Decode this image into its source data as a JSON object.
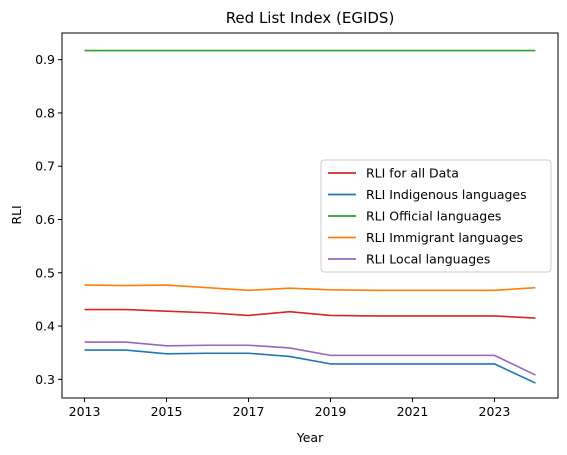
{
  "chart_data": {
    "type": "line",
    "title": "Red List Index (EGIDS)",
    "xlabel": "Year",
    "ylabel": "RLI",
    "x": [
      2013,
      2014,
      2015,
      2016,
      2017,
      2018,
      2019,
      2020,
      2021,
      2022,
      2023,
      2024
    ],
    "xlim": [
      2012.45,
      2024.55
    ],
    "ylim": [
      0.265,
      0.95
    ],
    "xticks": [
      "2013",
      "2015",
      "2017",
      "2019",
      "2021",
      "2023"
    ],
    "yticks": [
      "0.3",
      "0.4",
      "0.5",
      "0.6",
      "0.7",
      "0.8",
      "0.9"
    ],
    "grid": false,
    "legend_position": "center-right",
    "series": [
      {
        "name": "RLI for all Data",
        "color": "#d62728",
        "values": [
          0.431,
          0.431,
          0.428,
          0.425,
          0.42,
          0.427,
          0.42,
          0.419,
          0.419,
          0.419,
          0.419,
          0.415
        ]
      },
      {
        "name": "RLI Indigenous languages",
        "color": "#1f77b4",
        "values": [
          0.355,
          0.355,
          0.348,
          0.349,
          0.349,
          0.343,
          0.329,
          0.329,
          0.329,
          0.329,
          0.329,
          0.293
        ]
      },
      {
        "name": "RLI Official languages",
        "color": "#2ca02c",
        "values": [
          0.917,
          0.917,
          0.917,
          0.917,
          0.917,
          0.917,
          0.917,
          0.917,
          0.917,
          0.917,
          0.917,
          0.917
        ]
      },
      {
        "name": "RLI Immigrant languages",
        "color": "#ff7f0e",
        "values": [
          0.477,
          0.476,
          0.477,
          0.472,
          0.467,
          0.471,
          0.468,
          0.467,
          0.467,
          0.467,
          0.467,
          0.472
        ]
      },
      {
        "name": "RLI Local languages",
        "color": "#9467bd",
        "values": [
          0.37,
          0.37,
          0.363,
          0.364,
          0.364,
          0.359,
          0.345,
          0.345,
          0.345,
          0.345,
          0.345,
          0.308
        ]
      }
    ]
  }
}
